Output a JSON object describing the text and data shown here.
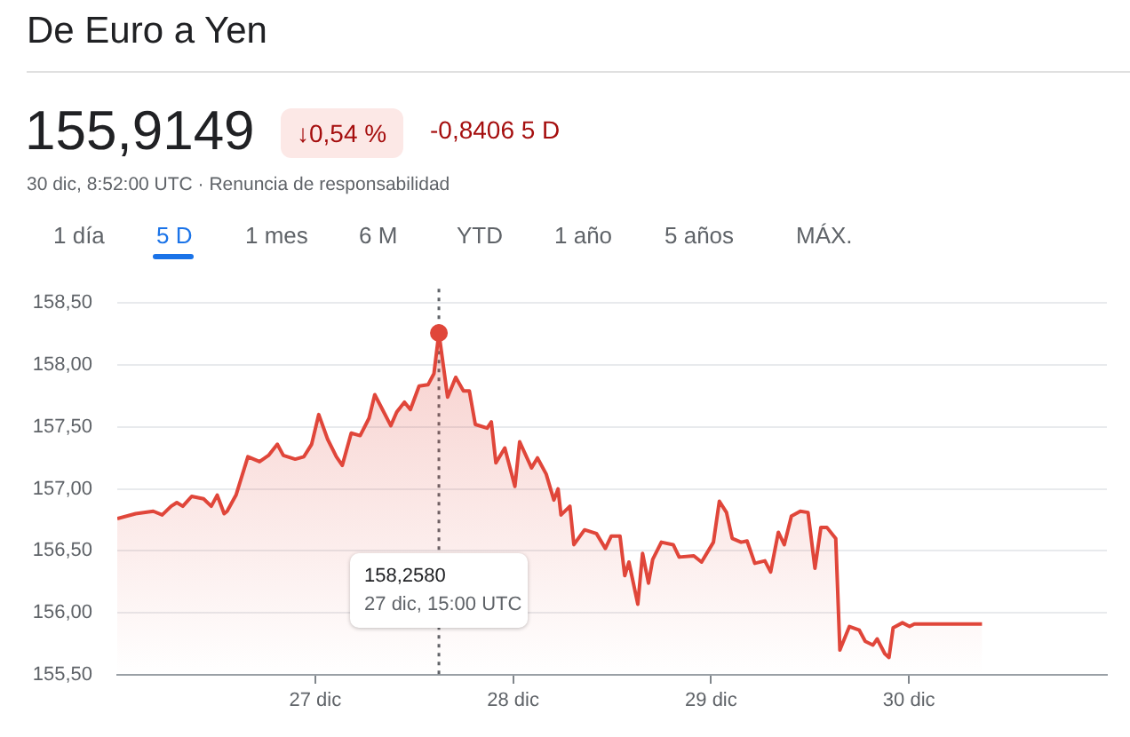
{
  "chart_data": {
    "type": "area",
    "title": "De Euro a Yen",
    "annotations": [
      "155,9149",
      "↓0,54 %",
      "-0,8406 5 D",
      "30 dic, 8:52:00 UTC · Renuncia de responsabilidad",
      "1 día",
      "5 D",
      "1 mes",
      "6 M",
      "YTD",
      "1 año",
      "5 años",
      "MÁX.",
      "158,2580",
      "27 dic, 15:00 UTC"
    ],
    "x": [
      26.0,
      26.093,
      26.182,
      26.227,
      26.272,
      26.301,
      26.331,
      26.376,
      26.436,
      26.475,
      26.505,
      26.54,
      26.555,
      26.6,
      26.66,
      26.719,
      26.764,
      26.809,
      26.839,
      26.899,
      26.943,
      26.982,
      27.018,
      27.063,
      27.107,
      27.137,
      27.182,
      27.227,
      27.272,
      27.301,
      27.34,
      27.382,
      27.412,
      27.451,
      27.481,
      27.525,
      27.57,
      27.6,
      27.625,
      27.669,
      27.71,
      27.749,
      27.779,
      27.809,
      27.869,
      27.89,
      27.913,
      27.958,
      28.009,
      28.033,
      28.093,
      28.123,
      28.167,
      28.206,
      28.227,
      28.242,
      28.287,
      28.307,
      28.361,
      28.421,
      28.466,
      28.496,
      28.54,
      28.564,
      28.585,
      28.63,
      28.654,
      28.684,
      28.705,
      28.749,
      28.809,
      28.839,
      28.913,
      28.952,
      29.012,
      29.042,
      29.078,
      29.107,
      29.152,
      29.182,
      29.221,
      29.272,
      29.301,
      29.34,
      29.37,
      29.406,
      29.451,
      29.49,
      29.525,
      29.555,
      29.585,
      29.63,
      29.651,
      29.699,
      29.749,
      29.779,
      29.818,
      29.839,
      29.878,
      29.899,
      29.92,
      29.967,
      30.003,
      30.027,
      30.369
    ],
    "series": [
      {
        "color": "#e0463a",
        "values": [
          156.76,
          156.8,
          156.82,
          156.79,
          156.86,
          156.89,
          156.86,
          156.94,
          156.92,
          156.86,
          156.95,
          156.8,
          156.82,
          156.95,
          157.26,
          157.22,
          157.27,
          157.36,
          157.27,
          157.24,
          157.26,
          157.36,
          157.6,
          157.4,
          157.26,
          157.19,
          157.45,
          157.43,
          157.57,
          157.76,
          157.64,
          157.51,
          157.62,
          157.7,
          157.64,
          157.83,
          157.84,
          157.93,
          158.258,
          157.74,
          157.9,
          157.79,
          157.79,
          157.52,
          157.49,
          157.54,
          157.21,
          157.33,
          157.02,
          157.38,
          157.17,
          157.25,
          157.12,
          156.91,
          157.0,
          156.79,
          156.86,
          156.55,
          156.67,
          156.64,
          156.52,
          156.62,
          156.62,
          156.3,
          156.41,
          156.07,
          156.48,
          156.24,
          156.43,
          156.57,
          156.55,
          156.45,
          156.46,
          156.41,
          156.57,
          156.9,
          156.81,
          156.6,
          156.57,
          156.58,
          156.4,
          156.42,
          156.33,
          156.65,
          156.55,
          156.78,
          156.82,
          156.81,
          156.36,
          156.69,
          156.69,
          156.6,
          155.7,
          155.89,
          155.86,
          155.77,
          155.74,
          155.79,
          155.67,
          155.64,
          155.88,
          155.92,
          155.89,
          155.91,
          155.91
        ]
      }
    ],
    "xlim": [
      26,
      31
    ],
    "xticks": [
      {
        "value": 27,
        "label": "27 dic"
      },
      {
        "value": 28,
        "label": "28 dic"
      },
      {
        "value": 29,
        "label": "29 dic"
      },
      {
        "value": 30,
        "label": "30 dic"
      }
    ],
    "ylim": [
      155.5,
      158.5
    ],
    "yticks": [
      {
        "value": 155.5,
        "label": "155,50"
      },
      {
        "value": 156,
        "label": "156,00"
      },
      {
        "value": 156.5,
        "label": "156,50"
      },
      {
        "value": 157,
        "label": "157,00"
      },
      {
        "value": 157.5,
        "label": "157,50"
      },
      {
        "value": 158,
        "label": "158,00"
      },
      {
        "value": 158.5,
        "label": "158,50"
      }
    ],
    "ref_lines": [
      {
        "axis": "x",
        "value": 27.625,
        "color": "#5f6368",
        "line_style": "dotted"
      }
    ],
    "grid": "y",
    "legend": false,
    "marker": "none",
    "line_style": "solid"
  }
}
